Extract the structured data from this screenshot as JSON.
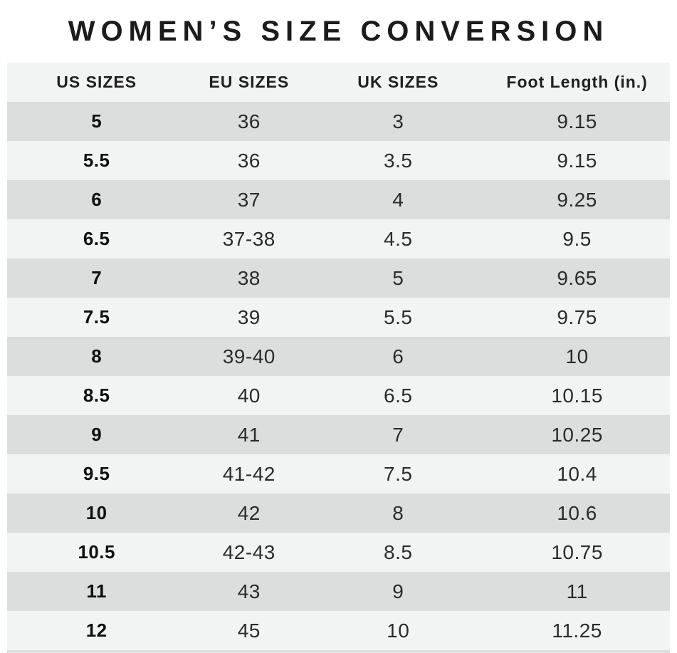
{
  "page": {
    "title": "WOMEN’S SIZE CONVERSION"
  },
  "colors": {
    "title_text": "#1c1c1c",
    "header_bg": "#f2f3f3",
    "header_text": "#1f1f1f",
    "row_dark": "#dcdddd",
    "row_light": "#f2f3f3",
    "cell_text": "#2b2b2b",
    "us_text": "#101010"
  },
  "chart_data": {
    "type": "table",
    "title": "WOMEN’S SIZE CONVERSION",
    "columns": [
      "US SIZES",
      "EU SIZES",
      "UK SIZES",
      "Foot Length (in.)"
    ],
    "rows": [
      [
        "5",
        "36",
        "3",
        "9.15"
      ],
      [
        "5.5",
        "36",
        "3.5",
        "9.15"
      ],
      [
        "6",
        "37",
        "4",
        "9.25"
      ],
      [
        "6.5",
        "37-38",
        "4.5",
        "9.5"
      ],
      [
        "7",
        "38",
        "5",
        "9.65"
      ],
      [
        "7.5",
        "39",
        "5.5",
        "9.75"
      ],
      [
        "8",
        "39-40",
        "6",
        "10"
      ],
      [
        "8.5",
        "40",
        "6.5",
        "10.15"
      ],
      [
        "9",
        "41",
        "7",
        "10.25"
      ],
      [
        "9.5",
        "41-42",
        "7.5",
        "10.4"
      ],
      [
        "10",
        "42",
        "8",
        "10.6"
      ],
      [
        "10.5",
        "42-43",
        "8.5",
        "10.75"
      ],
      [
        "11",
        "43",
        "9",
        "11"
      ],
      [
        "12",
        "45",
        "10",
        "11.25"
      ]
    ],
    "layout": {
      "row_striping": "alternating dark/light starting dark",
      "alignment": "center"
    }
  }
}
